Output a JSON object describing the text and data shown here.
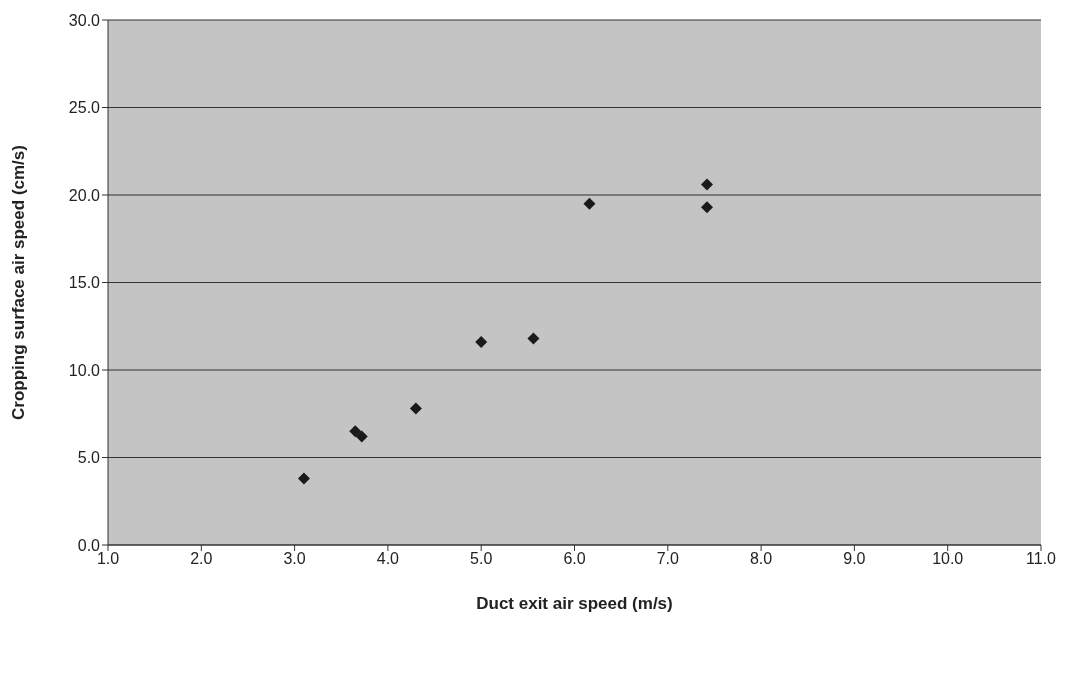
{
  "chart_data": {
    "type": "scatter",
    "xlabel": "Duct exit air speed (m/s)",
    "ylabel": "Cropping surface air speed (cm/s)",
    "x": [
      3.1,
      3.65,
      3.72,
      4.3,
      5.0,
      5.56,
      6.16,
      7.42,
      7.42
    ],
    "values": [
      3.8,
      6.5,
      6.2,
      7.8,
      11.6,
      11.8,
      19.5,
      20.6,
      19.3
    ],
    "color": "#1a1a1a",
    "marker": "diamond",
    "xlim": [
      1,
      11
    ],
    "xticks": [
      {
        "value": 1,
        "label": "1.0"
      },
      {
        "value": 2,
        "label": "2.0"
      },
      {
        "value": 3,
        "label": "3.0"
      },
      {
        "value": 4,
        "label": "4.0"
      },
      {
        "value": 5,
        "label": "5.0"
      },
      {
        "value": 6,
        "label": "6.0"
      },
      {
        "value": 7,
        "label": "7.0"
      },
      {
        "value": 8,
        "label": "8.0"
      },
      {
        "value": 9,
        "label": "9.0"
      },
      {
        "value": 10,
        "label": "10.0"
      },
      {
        "value": 11,
        "label": "11.0"
      }
    ],
    "ylim": [
      0,
      30
    ],
    "yticks": [
      {
        "value": 0,
        "label": "0.0"
      },
      {
        "value": 5,
        "label": "5.0"
      },
      {
        "value": 10,
        "label": "10.0"
      },
      {
        "value": 15,
        "label": "15.0"
      },
      {
        "value": 20,
        "label": "20.0"
      },
      {
        "value": 25,
        "label": "25.0"
      },
      {
        "value": 30,
        "label": "30.0"
      }
    ],
    "grid": "y"
  }
}
